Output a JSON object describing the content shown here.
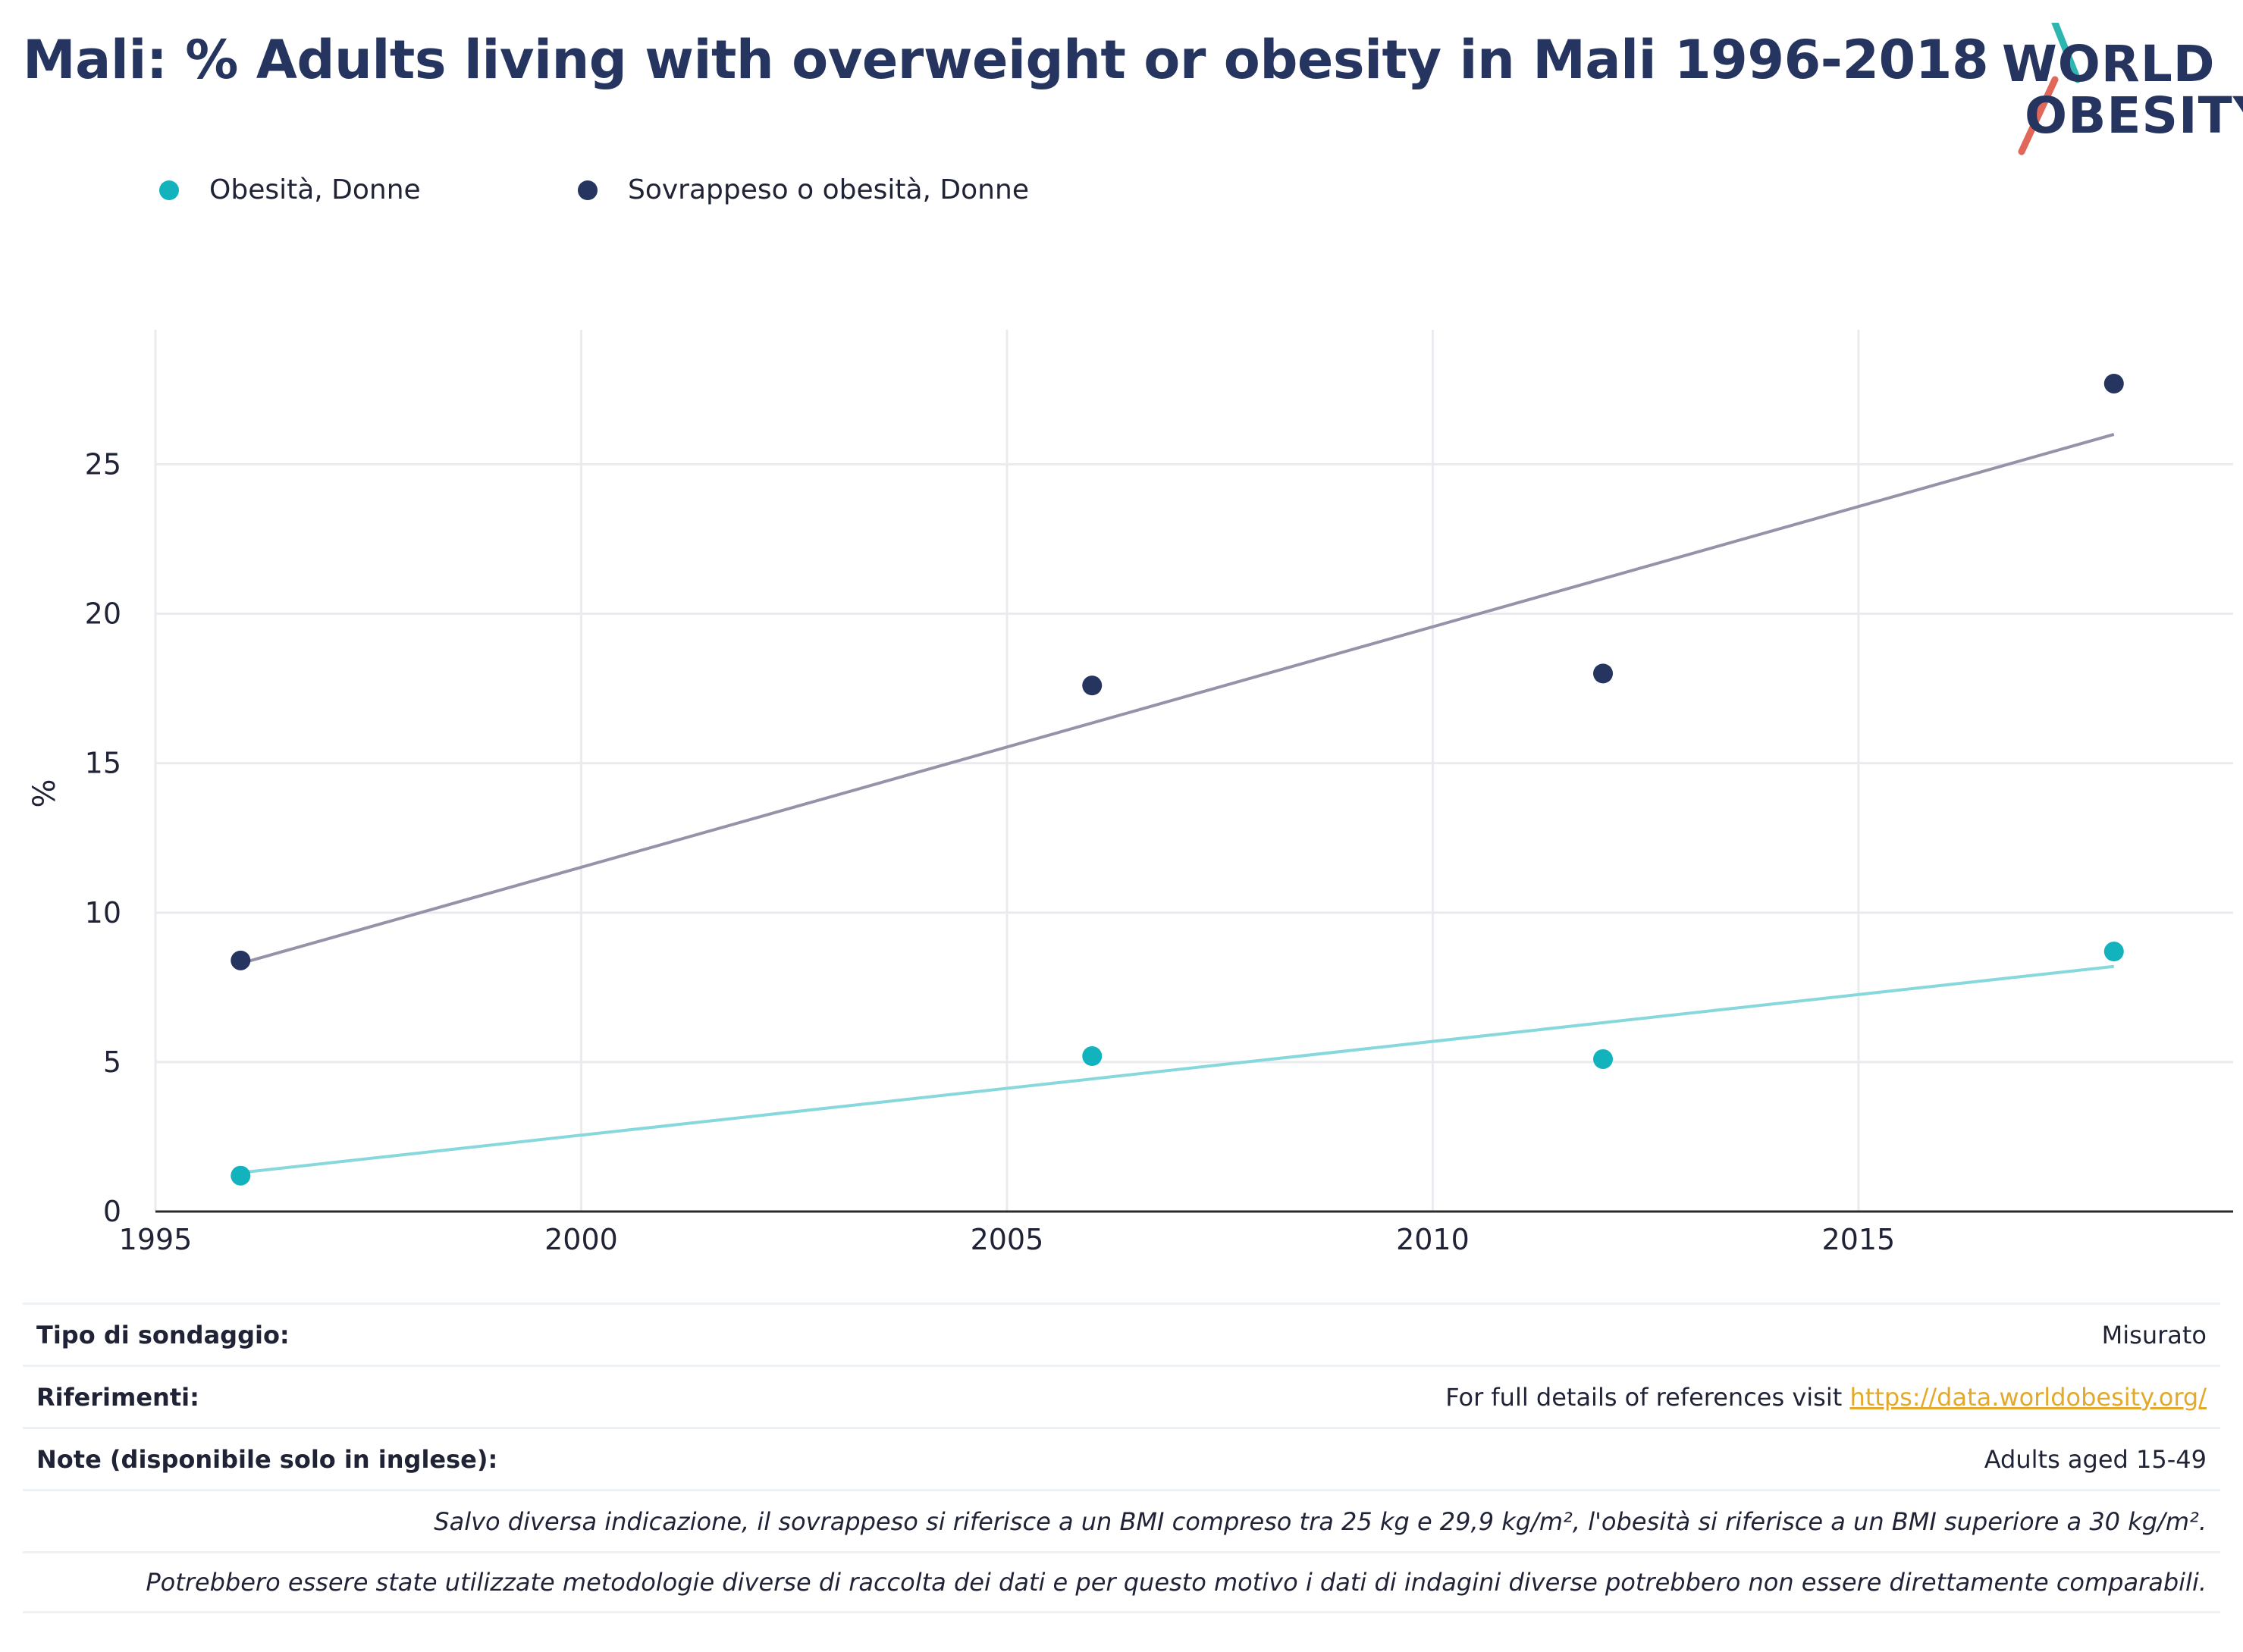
{
  "title": "Mali: % Adults living with overweight or obesity in Mali 1996-2018",
  "logo": {
    "line1": "WORLD",
    "line2": "OBESITY"
  },
  "legend": [
    {
      "label": "Obesità, Donne",
      "color": "#13b3bd"
    },
    {
      "label": "Sovrappeso o obesità, Donne",
      "color": "#263560"
    }
  ],
  "chart_data": {
    "type": "scatter",
    "ylabel": "%",
    "xlabel": "",
    "xlim": [
      1995,
      2019.4
    ],
    "ylim": [
      0,
      29.5
    ],
    "x_ticks": [
      1995,
      2000,
      2005,
      2010,
      2015
    ],
    "y_ticks": [
      0,
      5,
      10,
      15,
      20,
      25
    ],
    "grid": true,
    "legend_position": "top-left",
    "series": [
      {
        "name": "Obesità, Donne",
        "color": "#13b3bd",
        "trend_color": "#86d8dc",
        "points": [
          {
            "x": 1996,
            "y": 1.2
          },
          {
            "x": 2006,
            "y": 5.2
          },
          {
            "x": 2012,
            "y": 5.1
          },
          {
            "x": 2018,
            "y": 8.7
          }
        ],
        "trend": [
          {
            "x": 1996,
            "y": 1.3
          },
          {
            "x": 2018,
            "y": 8.2
          }
        ]
      },
      {
        "name": "Sovrappeso o obesità, Donne",
        "color": "#263560",
        "trend_color": "#9693a8",
        "points": [
          {
            "x": 1996,
            "y": 8.4
          },
          {
            "x": 2006,
            "y": 17.6
          },
          {
            "x": 2012,
            "y": 18.0
          },
          {
            "x": 2018,
            "y": 27.7
          }
        ],
        "trend": [
          {
            "x": 1996,
            "y": 8.3
          },
          {
            "x": 2018,
            "y": 26.0
          }
        ]
      }
    ]
  },
  "footer": {
    "survey_label": "Tipo di sondaggio:",
    "survey_value": "Misurato",
    "references_label": "Riferimenti:",
    "references_text": "For full details of references visit ",
    "references_link": "https://data.worldobesity.org/",
    "notes_label": "Note (disponibile solo in inglese):",
    "notes_value": "Adults aged 15-49",
    "note_bmi": "Salvo diversa indicazione, il sovrappeso si riferisce a un BMI compreso tra 25 kg e 29,9 kg/m², l'obesità si riferisce a un BMI superiore a 30 kg/m².",
    "note_methods": "Potrebbero essere state utilizzate metodologie diverse di raccolta dei dati e per questo motivo i dati di indagini diverse potrebbero non essere direttamente comparabili."
  }
}
